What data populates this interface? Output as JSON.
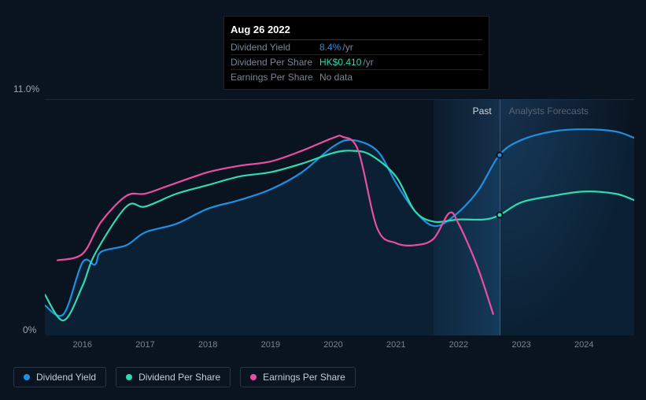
{
  "tooltip": {
    "date": "Aug 26 2022",
    "rows": [
      {
        "label": "Dividend Yield",
        "value": "8.4%",
        "value_color": "#1e90e2",
        "unit": "/yr"
      },
      {
        "label": "Dividend Per Share",
        "value": "HK$0.410",
        "value_color": "#2fdab0",
        "unit": "/yr"
      },
      {
        "label": "Earnings Per Share",
        "value": "No data",
        "value_color": "#7a8594",
        "unit": ""
      }
    ]
  },
  "chart": {
    "type": "line",
    "background_color": "#0a1420",
    "grid_color": "#1b2633",
    "text_color": "#9aa4b3",
    "y": {
      "min": 0,
      "max": 11.0,
      "min_label": "0%",
      "max_label": "11.0%"
    },
    "x": {
      "min": 2015.4,
      "max": 2024.8,
      "ticks": [
        2016,
        2017,
        2018,
        2019,
        2020,
        2021,
        2022,
        2023,
        2024
      ]
    },
    "sections": {
      "past_label": "Past",
      "forecast_label": "Analysts Forecasts",
      "past_end": 2022.65,
      "hover_band_start": 2021.6
    },
    "tooltip_x": 2022.65,
    "markers": [
      {
        "x": 2022.65,
        "y": 8.4,
        "color": "#1e90e2"
      },
      {
        "x": 2022.65,
        "y": 5.6,
        "color": "#2fdab0"
      }
    ],
    "series": [
      {
        "name": "Dividend Yield",
        "color": "#1e90e2",
        "width": 2.2,
        "fill": true,
        "points": [
          [
            2015.4,
            1.4
          ],
          [
            2015.7,
            1.0
          ],
          [
            2016.0,
            3.4
          ],
          [
            2016.2,
            3.3
          ],
          [
            2016.3,
            3.9
          ],
          [
            2016.7,
            4.2
          ],
          [
            2017.0,
            4.8
          ],
          [
            2017.5,
            5.2
          ],
          [
            2018.0,
            5.9
          ],
          [
            2018.5,
            6.3
          ],
          [
            2019.0,
            6.8
          ],
          [
            2019.5,
            7.6
          ],
          [
            2020.0,
            8.8
          ],
          [
            2020.3,
            9.1
          ],
          [
            2020.7,
            8.6
          ],
          [
            2021.0,
            7.1
          ],
          [
            2021.3,
            5.8
          ],
          [
            2021.6,
            5.1
          ],
          [
            2021.9,
            5.5
          ],
          [
            2022.3,
            6.7
          ],
          [
            2022.65,
            8.4
          ],
          [
            2023.0,
            9.1
          ],
          [
            2023.5,
            9.5
          ],
          [
            2024.0,
            9.6
          ],
          [
            2024.5,
            9.5
          ],
          [
            2024.8,
            9.2
          ]
        ]
      },
      {
        "name": "Dividend Per Share",
        "color": "#2fdab0",
        "width": 2.2,
        "fill": false,
        "points": [
          [
            2015.4,
            1.9
          ],
          [
            2015.7,
            0.7
          ],
          [
            2016.0,
            2.3
          ],
          [
            2016.2,
            3.8
          ],
          [
            2016.7,
            6.0
          ],
          [
            2017.0,
            6.0
          ],
          [
            2017.5,
            6.6
          ],
          [
            2018.0,
            7.0
          ],
          [
            2018.5,
            7.4
          ],
          [
            2019.0,
            7.6
          ],
          [
            2019.5,
            8.0
          ],
          [
            2020.0,
            8.5
          ],
          [
            2020.3,
            8.6
          ],
          [
            2020.6,
            8.4
          ],
          [
            2021.0,
            7.4
          ],
          [
            2021.3,
            5.8
          ],
          [
            2021.6,
            5.3
          ],
          [
            2022.0,
            5.4
          ],
          [
            2022.4,
            5.4
          ],
          [
            2022.65,
            5.6
          ],
          [
            2023.0,
            6.2
          ],
          [
            2023.5,
            6.5
          ],
          [
            2024.0,
            6.7
          ],
          [
            2024.5,
            6.6
          ],
          [
            2024.8,
            6.3
          ]
        ]
      },
      {
        "name": "Earnings Per Share",
        "color": "#e84fa1",
        "width": 2.2,
        "fill": false,
        "points": [
          [
            2015.6,
            3.5
          ],
          [
            2016.0,
            3.8
          ],
          [
            2016.3,
            5.3
          ],
          [
            2016.7,
            6.5
          ],
          [
            2017.0,
            6.6
          ],
          [
            2017.4,
            7.0
          ],
          [
            2018.0,
            7.6
          ],
          [
            2018.5,
            7.9
          ],
          [
            2019.0,
            8.1
          ],
          [
            2019.5,
            8.6
          ],
          [
            2020.0,
            9.2
          ],
          [
            2020.15,
            9.25
          ],
          [
            2020.4,
            8.6
          ],
          [
            2020.7,
            5.0
          ],
          [
            2021.0,
            4.3
          ],
          [
            2021.3,
            4.2
          ],
          [
            2021.6,
            4.5
          ],
          [
            2021.85,
            5.7
          ],
          [
            2022.0,
            5.2
          ],
          [
            2022.3,
            3.2
          ],
          [
            2022.55,
            1.0
          ]
        ]
      }
    ]
  },
  "legend": [
    {
      "label": "Dividend Yield",
      "color": "#1e90e2"
    },
    {
      "label": "Dividend Per Share",
      "color": "#2fdab0"
    },
    {
      "label": "Earnings Per Share",
      "color": "#e84fa1"
    }
  ]
}
